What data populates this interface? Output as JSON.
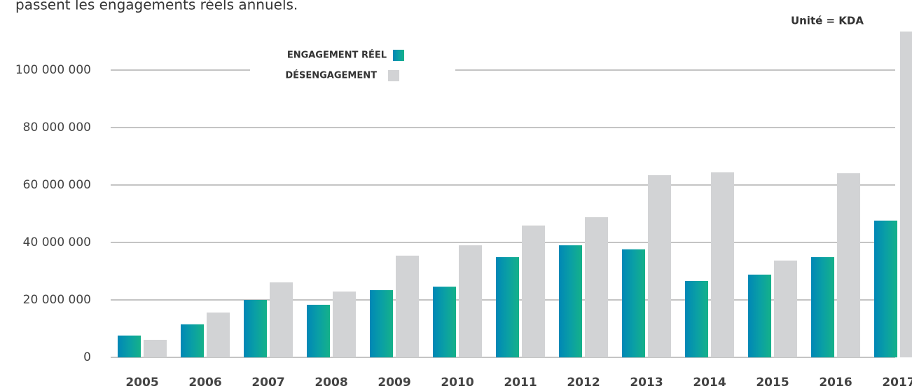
{
  "chart_data": {
    "type": "bar",
    "subtitle": "passent les engagements réels annuels.",
    "unit_note": "Unité = KDA",
    "categories": [
      "2005",
      "2006",
      "2007",
      "2008",
      "2009",
      "2010",
      "2011",
      "2012",
      "2013",
      "2014",
      "2015",
      "2016",
      "2017"
    ],
    "series": [
      {
        "name": "ENGAGEMENT RÉEL",
        "color": "#0a9fa5",
        "values": [
          7600000,
          11500000,
          20000000,
          18300000,
          23400000,
          24600000,
          34900000,
          39000000,
          37600000,
          26600000,
          28800000,
          34900000,
          47600000
        ]
      },
      {
        "name": "DÉSENGAGEMENT",
        "color": "#d2d3d5",
        "values": [
          6100000,
          15600000,
          26100000,
          22900000,
          35400000,
          39000000,
          45900000,
          48800000,
          63400000,
          64400000,
          33700000,
          64100000,
          113400000
        ]
      }
    ],
    "ylim": [
      0,
      113400000
    ],
    "yticks": [
      0,
      {
        "value": 20000000,
        "label": "20 000 000"
      },
      {
        "value": 40000000,
        "label": "40 000 000"
      },
      {
        "value": 60000000,
        "label": "60 000 000"
      },
      {
        "value": 80000000,
        "label": "80 000 000"
      },
      {
        "value": 100000000,
        "label": "100 000 000"
      }
    ],
    "grid": true
  }
}
